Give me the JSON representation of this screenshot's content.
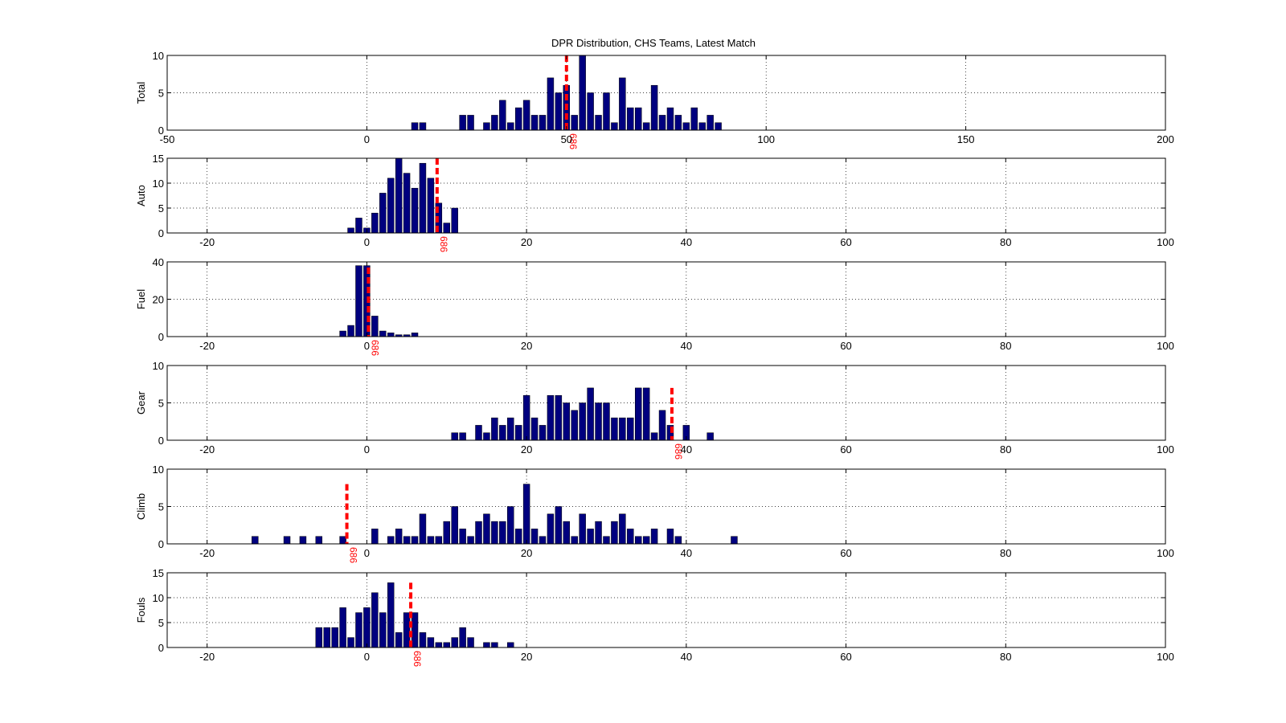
{
  "figure": {
    "title": "DPR Distribution, CHS Teams, Latest Match",
    "bar_color": "#00007f",
    "marker_color": "#ff0000",
    "marker_label": "686"
  },
  "chart_data": [
    {
      "type": "bar",
      "ylabel": "Total",
      "xlim": [
        -50,
        200
      ],
      "ylim": [
        0,
        10
      ],
      "xticks": [
        -50,
        0,
        50,
        100,
        150,
        200
      ],
      "yticks": [
        0,
        5,
        10
      ],
      "grid": true,
      "bin_width": 2,
      "marker_x": 50,
      "marker_top": 10,
      "x": [
        12,
        14,
        24,
        26,
        30,
        32,
        34,
        36,
        38,
        40,
        42,
        44,
        46,
        48,
        50,
        52,
        54,
        56,
        58,
        60,
        62,
        64,
        66,
        68,
        70,
        72,
        74,
        76,
        78,
        80,
        82,
        84,
        86,
        88
      ],
      "values": [
        1,
        1,
        2,
        2,
        1,
        2,
        4,
        1,
        3,
        4,
        2,
        2,
        7,
        5,
        6,
        2,
        10,
        5,
        2,
        5,
        1,
        7,
        3,
        3,
        1,
        6,
        2,
        3,
        2,
        1,
        3,
        1,
        2,
        1
      ]
    },
    {
      "type": "bar",
      "ylabel": "Auto",
      "xlim": [
        -25,
        100
      ],
      "ylim": [
        0,
        15
      ],
      "xticks": [
        -20,
        0,
        20,
        40,
        60,
        80,
        100
      ],
      "yticks": [
        0,
        5,
        10,
        15
      ],
      "grid": true,
      "bin_width": 1,
      "marker_x": 8.8,
      "marker_top": 15,
      "x": [
        -2,
        -1,
        0,
        1,
        2,
        3,
        4,
        5,
        6,
        7,
        8,
        9,
        10,
        11
      ],
      "values": [
        1,
        3,
        1,
        4,
        8,
        11,
        15,
        12,
        9,
        14,
        11,
        6,
        2,
        5
      ]
    },
    {
      "type": "bar",
      "ylabel": "Fuel",
      "xlim": [
        -25,
        100
      ],
      "ylim": [
        0,
        40
      ],
      "xticks": [
        -20,
        0,
        20,
        40,
        60,
        80,
        100
      ],
      "yticks": [
        0,
        20,
        40
      ],
      "grid": true,
      "bin_width": 1,
      "marker_x": 0.2,
      "marker_top": 37,
      "x": [
        -3,
        -2,
        -1,
        0,
        1,
        2,
        3,
        4,
        5,
        6
      ],
      "values": [
        3,
        6,
        38,
        38,
        11,
        3,
        2,
        1,
        1,
        2
      ]
    },
    {
      "type": "bar",
      "ylabel": "Gear",
      "xlim": [
        -25,
        100
      ],
      "ylim": [
        0,
        10
      ],
      "xticks": [
        -20,
        0,
        20,
        40,
        60,
        80,
        100
      ],
      "yticks": [
        0,
        5,
        10
      ],
      "grid": true,
      "bin_width": 1,
      "marker_x": 38.2,
      "marker_top": 7,
      "x": [
        11,
        12,
        14,
        15,
        16,
        17,
        18,
        19,
        20,
        21,
        22,
        23,
        24,
        25,
        26,
        27,
        28,
        29,
        30,
        31,
        32,
        33,
        34,
        35,
        36,
        37,
        38,
        40,
        43
      ],
      "values": [
        1,
        1,
        2,
        1,
        3,
        2,
        3,
        2,
        6,
        3,
        2,
        6,
        6,
        5,
        4,
        5,
        7,
        5,
        5,
        3,
        3,
        3,
        7,
        7,
        1,
        4,
        2,
        2,
        1
      ]
    },
    {
      "type": "bar",
      "ylabel": "Climb",
      "xlim": [
        -25,
        100
      ],
      "ylim": [
        0,
        10
      ],
      "xticks": [
        -20,
        0,
        20,
        40,
        60,
        80,
        100
      ],
      "yticks": [
        0,
        5,
        10
      ],
      "grid": true,
      "bin_width": 1,
      "marker_x": -2.5,
      "marker_top": 8,
      "x": [
        -14,
        -10,
        -8,
        -6,
        -3,
        1,
        3,
        4,
        5,
        6,
        7,
        8,
        9,
        10,
        11,
        12,
        13,
        14,
        15,
        16,
        17,
        18,
        19,
        20,
        21,
        22,
        23,
        24,
        25,
        26,
        27,
        28,
        29,
        30,
        31,
        32,
        33,
        34,
        35,
        36,
        38,
        39,
        46
      ],
      "values": [
        1,
        1,
        1,
        1,
        1,
        2,
        1,
        2,
        1,
        1,
        4,
        1,
        1,
        3,
        5,
        2,
        1,
        3,
        4,
        3,
        3,
        5,
        2,
        8,
        2,
        1,
        4,
        5,
        3,
        1,
        4,
        2,
        3,
        1,
        3,
        4,
        2,
        1,
        1,
        2,
        2,
        1,
        1
      ]
    },
    {
      "type": "bar",
      "ylabel": "Fouls",
      "xlim": [
        -25,
        100
      ],
      "ylim": [
        0,
        15
      ],
      "xticks": [
        -20,
        0,
        20,
        40,
        60,
        80,
        100
      ],
      "yticks": [
        0,
        5,
        10,
        15
      ],
      "grid": true,
      "bin_width": 1,
      "marker_x": 5.5,
      "marker_top": 13,
      "x": [
        -6,
        -5,
        -4,
        -3,
        -2,
        -1,
        0,
        1,
        2,
        3,
        4,
        5,
        6,
        7,
        8,
        9,
        10,
        11,
        12,
        13,
        15,
        16,
        18
      ],
      "values": [
        4,
        4,
        4,
        8,
        2,
        7,
        8,
        11,
        7,
        13,
        3,
        7,
        7,
        3,
        2,
        1,
        1,
        2,
        4,
        2,
        1,
        1,
        1
      ]
    }
  ]
}
